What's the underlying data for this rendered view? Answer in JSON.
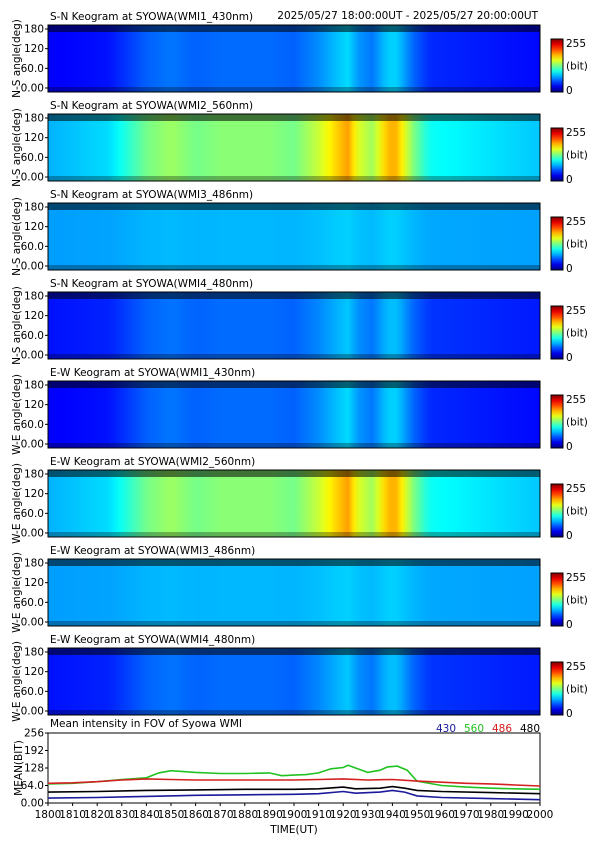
{
  "header": {
    "time_range": "2025/05/27 18:00:00UT - 2025/05/27 20:00:00UT"
  },
  "colorbar": {
    "max_label": "255",
    "unit_label": "(bit)",
    "min_label": "0"
  },
  "keograms": [
    {
      "title": "S-N Keogram at SYOWA(WMI1_430nm)",
      "ylabel": "N-S angle(deg)",
      "yticks": [
        "180",
        "120",
        "60.0",
        "0.00"
      ],
      "base": 0.12,
      "amp": 0.22
    },
    {
      "title": "S-N Keogram at SYOWA(WMI2_560nm)",
      "ylabel": "N-S angle(deg)",
      "yticks": [
        "180",
        "120",
        "60.0",
        "0.00"
      ],
      "base": 0.3,
      "amp": 0.42
    },
    {
      "title": "S-N Keogram at SYOWA(WMI3_486nm)",
      "ylabel": "N-S angle(deg)",
      "yticks": [
        "180",
        "120",
        "60.0",
        "0.00"
      ],
      "base": 0.28,
      "amp": 0.05
    },
    {
      "title": "S-N Keogram at SYOWA(WMI4_480nm)",
      "ylabel": "N-S angle(deg)",
      "yticks": [
        "180",
        "120",
        "60.0",
        "0.00"
      ],
      "base": 0.14,
      "amp": 0.18
    },
    {
      "title": "E-W Keogram at SYOWA(WMI1_430nm)",
      "ylabel": "W-E angle(deg)",
      "yticks": [
        "180",
        "120",
        "60.0",
        "0.00"
      ],
      "base": 0.12,
      "amp": 0.22
    },
    {
      "title": "E-W Keogram at SYOWA(WMI2_560nm)",
      "ylabel": "W-E angle(deg)",
      "yticks": [
        "180",
        "120",
        "60.0",
        "0.00"
      ],
      "base": 0.3,
      "amp": 0.42
    },
    {
      "title": "E-W Keogram at SYOWA(WMI3_486nm)",
      "ylabel": "W-E angle(deg)",
      "yticks": [
        "180",
        "120",
        "60.0",
        "0.00"
      ],
      "base": 0.28,
      "amp": 0.05
    },
    {
      "title": "E-W Keogram at SYOWA(WMI4_480nm)",
      "ylabel": "W-E angle(deg)",
      "yticks": [
        "180",
        "120",
        "60.0",
        "0.00"
      ],
      "base": 0.14,
      "amp": 0.18
    }
  ],
  "activity": [
    {
      "t": 1800,
      "v": 0.0
    },
    {
      "t": 1825,
      "v": 0.1
    },
    {
      "t": 1840,
      "v": 0.45
    },
    {
      "t": 1850,
      "v": 0.55
    },
    {
      "t": 1860,
      "v": 0.45
    },
    {
      "t": 1870,
      "v": 0.5
    },
    {
      "t": 1880,
      "v": 0.5
    },
    {
      "t": 1890,
      "v": 0.5
    },
    {
      "t": 1900,
      "v": 0.45
    },
    {
      "t": 1910,
      "v": 0.65
    },
    {
      "t": 1918,
      "v": 0.9
    },
    {
      "t": 1922,
      "v": 1.0
    },
    {
      "t": 1926,
      "v": 0.7
    },
    {
      "t": 1932,
      "v": 0.55
    },
    {
      "t": 1938,
      "v": 0.95
    },
    {
      "t": 1942,
      "v": 0.95
    },
    {
      "t": 1948,
      "v": 0.5
    },
    {
      "t": 1955,
      "v": 0.2
    },
    {
      "t": 2000,
      "v": 0.05
    }
  ],
  "chart_data": {
    "type": "line",
    "title": "Mean intensity in FOV of Syowa WMI",
    "xlabel": "TIME(UT)",
    "ylabel": "MEAN(BIT)",
    "xlim": [
      1800,
      2000
    ],
    "ylim": [
      0,
      256
    ],
    "xticks": [
      "1800",
      "1810",
      "1820",
      "1830",
      "1840",
      "1850",
      "1860",
      "1870",
      "1880",
      "1890",
      "1900",
      "1910",
      "1920",
      "1930",
      "1940",
      "1950",
      "1960",
      "1970",
      "1980",
      "1990",
      "2000"
    ],
    "yticks": [
      "256",
      "192",
      "128",
      "64.0",
      "0.00"
    ],
    "legend_position": "top-right",
    "series": [
      {
        "name": "430",
        "color": "#1a1a9a",
        "values": [
          [
            1800,
            18
          ],
          [
            1820,
            20
          ],
          [
            1840,
            24
          ],
          [
            1860,
            28
          ],
          [
            1880,
            30
          ],
          [
            1900,
            32
          ],
          [
            1910,
            34
          ],
          [
            1920,
            42
          ],
          [
            1925,
            36
          ],
          [
            1935,
            40
          ],
          [
            1940,
            46
          ],
          [
            1945,
            40
          ],
          [
            1950,
            26
          ],
          [
            1960,
            20
          ],
          [
            1980,
            16
          ],
          [
            2000,
            12
          ]
        ]
      },
      {
        "name": "560",
        "color": "#22c222",
        "values": [
          [
            1800,
            70
          ],
          [
            1810,
            72
          ],
          [
            1820,
            78
          ],
          [
            1830,
            86
          ],
          [
            1840,
            92
          ],
          [
            1845,
            110
          ],
          [
            1850,
            118
          ],
          [
            1860,
            112
          ],
          [
            1870,
            108
          ],
          [
            1880,
            108
          ],
          [
            1890,
            110
          ],
          [
            1895,
            100
          ],
          [
            1900,
            102
          ],
          [
            1905,
            104
          ],
          [
            1910,
            110
          ],
          [
            1915,
            125
          ],
          [
            1920,
            130
          ],
          [
            1922,
            138
          ],
          [
            1925,
            128
          ],
          [
            1930,
            112
          ],
          [
            1935,
            120
          ],
          [
            1938,
            132
          ],
          [
            1942,
            135
          ],
          [
            1946,
            120
          ],
          [
            1950,
            80
          ],
          [
            1960,
            64
          ],
          [
            1970,
            58
          ],
          [
            1980,
            54
          ],
          [
            1990,
            52
          ],
          [
            2000,
            50
          ]
        ]
      },
      {
        "name": "486",
        "color": "#d42020",
        "values": [
          [
            1800,
            72
          ],
          [
            1810,
            74
          ],
          [
            1820,
            78
          ],
          [
            1830,
            84
          ],
          [
            1840,
            88
          ],
          [
            1850,
            86
          ],
          [
            1860,
            84
          ],
          [
            1870,
            84
          ],
          [
            1880,
            84
          ],
          [
            1890,
            84
          ],
          [
            1900,
            84
          ],
          [
            1910,
            86
          ],
          [
            1920,
            88
          ],
          [
            1930,
            84
          ],
          [
            1940,
            86
          ],
          [
            1950,
            80
          ],
          [
            1960,
            76
          ],
          [
            1970,
            72
          ],
          [
            1980,
            70
          ],
          [
            1990,
            66
          ],
          [
            2000,
            62
          ]
        ]
      },
      {
        "name": "480",
        "color": "#000000",
        "values": [
          [
            1800,
            40
          ],
          [
            1820,
            42
          ],
          [
            1840,
            46
          ],
          [
            1860,
            48
          ],
          [
            1880,
            50
          ],
          [
            1900,
            50
          ],
          [
            1910,
            52
          ],
          [
            1920,
            58
          ],
          [
            1925,
            52
          ],
          [
            1935,
            54
          ],
          [
            1940,
            60
          ],
          [
            1945,
            54
          ],
          [
            1950,
            46
          ],
          [
            1960,
            42
          ],
          [
            1980,
            38
          ],
          [
            2000,
            34
          ]
        ]
      }
    ]
  }
}
